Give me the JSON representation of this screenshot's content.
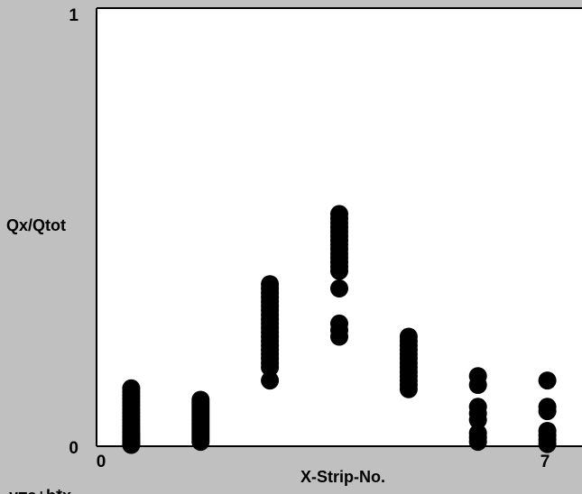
{
  "colors": {
    "background": "#c0c0c0",
    "plot_area": "#ffffff",
    "axis": "#000000",
    "marker": "#000000"
  },
  "footer_text": "y=a+b*x",
  "chart_data": {
    "type": "scatter",
    "xlabel": "X-Strip-No.",
    "ylabel": "Qx/Qtot",
    "xlim": [
      0,
      7
    ],
    "ylim": [
      0,
      1
    ],
    "x_tick_labels": [
      "0",
      "7"
    ],
    "y_tick_labels": [
      "0",
      "1"
    ],
    "grid": false,
    "marker": "filled-circle",
    "series": [
      {
        "points": [
          [
            0.5,
            0.003
          ],
          [
            0.5,
            0.006
          ],
          [
            0.5,
            0.01
          ],
          [
            0.5,
            0.014
          ],
          [
            0.5,
            0.018
          ],
          [
            0.5,
            0.022
          ],
          [
            0.5,
            0.027
          ],
          [
            0.5,
            0.033
          ],
          [
            0.5,
            0.039
          ],
          [
            0.5,
            0.046
          ],
          [
            0.5,
            0.053
          ],
          [
            0.5,
            0.06
          ],
          [
            0.5,
            0.068
          ],
          [
            0.5,
            0.076
          ],
          [
            0.5,
            0.084
          ],
          [
            0.5,
            0.092
          ],
          [
            0.5,
            0.1
          ],
          [
            0.5,
            0.108
          ],
          [
            0.5,
            0.116
          ],
          [
            0.5,
            0.124
          ],
          [
            0.5,
            0.132
          ],
          [
            1.5,
            0.01
          ],
          [
            1.5,
            0.016
          ],
          [
            1.5,
            0.022
          ],
          [
            1.5,
            0.028
          ],
          [
            1.5,
            0.034
          ],
          [
            1.5,
            0.04
          ],
          [
            1.5,
            0.046
          ],
          [
            1.5,
            0.052
          ],
          [
            1.5,
            0.058
          ],
          [
            1.5,
            0.064
          ],
          [
            1.5,
            0.07
          ],
          [
            1.5,
            0.076
          ],
          [
            1.5,
            0.082
          ],
          [
            1.5,
            0.088
          ],
          [
            1.5,
            0.094
          ],
          [
            1.5,
            0.1
          ],
          [
            1.5,
            0.106
          ],
          [
            2.5,
            0.15
          ],
          [
            2.5,
            0.18
          ],
          [
            2.5,
            0.19
          ],
          [
            2.5,
            0.2
          ],
          [
            2.5,
            0.21
          ],
          [
            2.5,
            0.22
          ],
          [
            2.5,
            0.23
          ],
          [
            2.5,
            0.24
          ],
          [
            2.5,
            0.25
          ],
          [
            2.5,
            0.26
          ],
          [
            2.5,
            0.27
          ],
          [
            2.5,
            0.28
          ],
          [
            2.5,
            0.29
          ],
          [
            2.5,
            0.3
          ],
          [
            2.5,
            0.31
          ],
          [
            2.5,
            0.32
          ],
          [
            2.5,
            0.33
          ],
          [
            2.5,
            0.34
          ],
          [
            2.5,
            0.35
          ],
          [
            2.5,
            0.36
          ],
          [
            2.5,
            0.37
          ],
          [
            3.5,
            0.25
          ],
          [
            3.5,
            0.265
          ],
          [
            3.5,
            0.28
          ],
          [
            3.5,
            0.36
          ],
          [
            3.5,
            0.4
          ],
          [
            3.5,
            0.41
          ],
          [
            3.5,
            0.42
          ],
          [
            3.5,
            0.43
          ],
          [
            3.5,
            0.44
          ],
          [
            3.5,
            0.45
          ],
          [
            3.5,
            0.46
          ],
          [
            3.5,
            0.47
          ],
          [
            3.5,
            0.48
          ],
          [
            3.5,
            0.49
          ],
          [
            3.5,
            0.5
          ],
          [
            3.5,
            0.51
          ],
          [
            3.5,
            0.52
          ],
          [
            3.5,
            0.53
          ],
          [
            4.5,
            0.13
          ],
          [
            4.5,
            0.14
          ],
          [
            4.5,
            0.15
          ],
          [
            4.5,
            0.16
          ],
          [
            4.5,
            0.17
          ],
          [
            4.5,
            0.18
          ],
          [
            4.5,
            0.19
          ],
          [
            4.5,
            0.2
          ],
          [
            4.5,
            0.21
          ],
          [
            4.5,
            0.22
          ],
          [
            4.5,
            0.23
          ],
          [
            4.5,
            0.24
          ],
          [
            4.5,
            0.25
          ],
          [
            5.5,
            0.01
          ],
          [
            5.5,
            0.02
          ],
          [
            5.5,
            0.03
          ],
          [
            5.5,
            0.06
          ],
          [
            5.5,
            0.075
          ],
          [
            5.5,
            0.09
          ],
          [
            5.5,
            0.14
          ],
          [
            5.5,
            0.16
          ],
          [
            6.5,
            0.005
          ],
          [
            6.5,
            0.015
          ],
          [
            6.5,
            0.025
          ],
          [
            6.5,
            0.035
          ],
          [
            6.5,
            0.08
          ],
          [
            6.5,
            0.09
          ],
          [
            6.5,
            0.15
          ]
        ]
      }
    ]
  }
}
